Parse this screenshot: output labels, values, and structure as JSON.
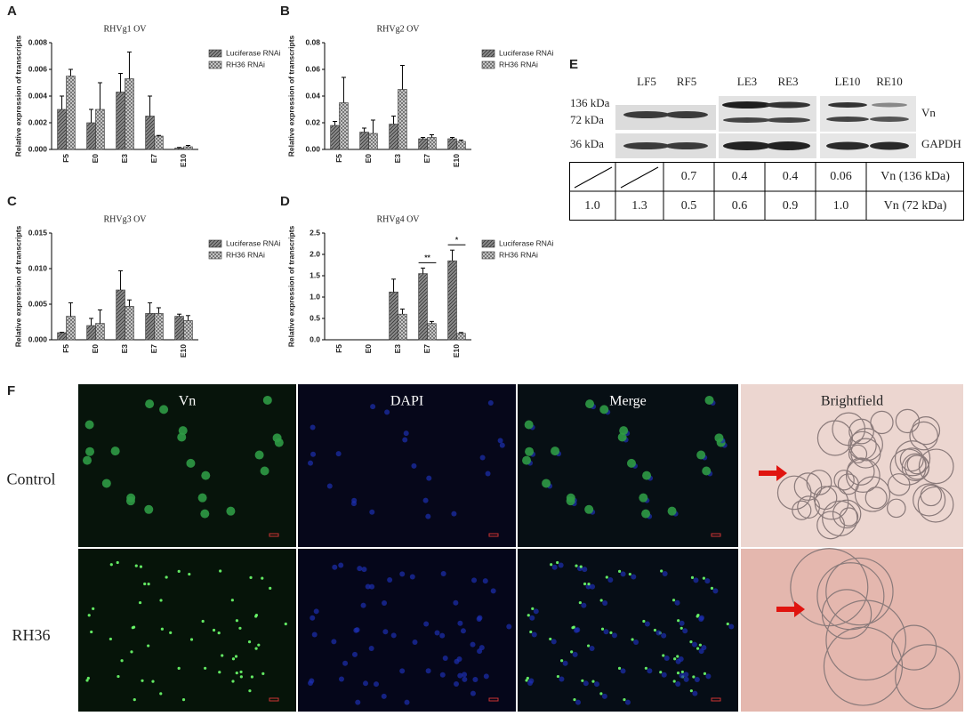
{
  "chart_data": [
    {
      "type": "bar",
      "panel_label": "A",
      "title": "RHVg1 OV",
      "ylabel": "Relative expression of transcripts",
      "categories": [
        "F5",
        "E0",
        "E3",
        "E7",
        "E10"
      ],
      "series": [
        {
          "name": "Luciferase RNAi",
          "color": "#8c8c8c",
          "values": [
            0.003,
            0.002,
            0.0043,
            0.0025,
            0.0001
          ],
          "errors": [
            0.001,
            0.001,
            0.0014,
            0.0015,
            5e-05
          ]
        },
        {
          "name": "RH36 RNAi",
          "color": "#d0d0d0",
          "values": [
            0.0055,
            0.003,
            0.0053,
            0.001,
            0.0002
          ],
          "errors": [
            0.0005,
            0.002,
            0.002,
            5e-05,
            0.0001
          ]
        }
      ],
      "ylim": [
        0,
        0.008
      ],
      "yticks": [
        {
          "value": 0,
          "label": "0.000"
        },
        {
          "value": 0.002,
          "label": "0.002"
        },
        {
          "value": 0.004,
          "label": "0.004"
        },
        {
          "value": 0.006,
          "label": "0.006"
        },
        {
          "value": 0.008,
          "label": "0.008"
        }
      ]
    },
    {
      "type": "bar",
      "panel_label": "B",
      "title": "RHVg2 OV",
      "ylabel": "Relative expression of transcripts",
      "categories": [
        "F5",
        "E0",
        "E3",
        "E7",
        "E10"
      ],
      "series": [
        {
          "name": "Luciferase RNAi",
          "color": "#8c8c8c",
          "values": [
            0.018,
            0.013,
            0.019,
            0.008,
            0.008
          ],
          "errors": [
            0.003,
            0.003,
            0.006,
            0.001,
            0.001
          ]
        },
        {
          "name": "RH36 RNAi",
          "color": "#d0d0d0",
          "values": [
            0.035,
            0.012,
            0.045,
            0.009,
            0.006
          ],
          "errors": [
            0.019,
            0.01,
            0.018,
            0.002,
            0.001
          ]
        }
      ],
      "ylim": [
        0,
        0.08
      ],
      "yticks": [
        {
          "value": 0,
          "label": "0.00"
        },
        {
          "value": 0.02,
          "label": "0.02"
        },
        {
          "value": 0.04,
          "label": "0.04"
        },
        {
          "value": 0.06,
          "label": "0.06"
        },
        {
          "value": 0.08,
          "label": "0.08"
        }
      ]
    },
    {
      "type": "bar",
      "panel_label": "C",
      "title": "RHVg3 OV",
      "ylabel": "Relative expression of transcripts",
      "categories": [
        "F5",
        "E0",
        "E3",
        "E7",
        "E10"
      ],
      "series": [
        {
          "name": "Luciferase RNAi",
          "color": "#8c8c8c",
          "values": [
            0.001,
            0.002,
            0.007,
            0.0037,
            0.0033
          ],
          "errors": [
            5e-05,
            0.001,
            0.0027,
            0.0015,
            0.0003
          ]
        },
        {
          "name": "RH36 RNAi",
          "color": "#d0d0d0",
          "values": [
            0.0033,
            0.0023,
            0.0047,
            0.0037,
            0.0027
          ],
          "errors": [
            0.0019,
            0.0019,
            0.0009,
            0.0008,
            0.0007
          ]
        }
      ],
      "ylim": [
        0,
        0.015
      ],
      "yticks": [
        {
          "value": 0,
          "label": "0.000"
        },
        {
          "value": 0.005,
          "label": "0.005"
        },
        {
          "value": 0.01,
          "label": "0.010"
        },
        {
          "value": 0.015,
          "label": "0.015"
        }
      ]
    },
    {
      "type": "bar",
      "panel_label": "D",
      "title": "RHVg4 OV",
      "ylabel": "Relative expression of transcripts",
      "categories": [
        "F5",
        "E0",
        "E3",
        "E7",
        "E10"
      ],
      "series": [
        {
          "name": "Luciferase RNAi",
          "color": "#8c8c8c",
          "values": [
            0,
            0,
            1.12,
            1.55,
            1.85
          ],
          "errors": [
            0,
            0,
            0.3,
            0.13,
            0.25
          ]
        },
        {
          "name": "RH36 RNAi",
          "color": "#d0d0d0",
          "values": [
            0,
            0,
            0.6,
            0.38,
            0.15
          ],
          "errors": [
            0,
            0,
            0.12,
            0.05,
            0.02
          ]
        }
      ],
      "ylim": [
        0,
        2.5
      ],
      "yticks": [
        {
          "value": 0,
          "label": "0.0"
        },
        {
          "value": 0.5,
          "label": "0.5"
        },
        {
          "value": 1,
          "label": "1.0"
        },
        {
          "value": 1.5,
          "label": "1.5"
        },
        {
          "value": 2,
          "label": "2.0"
        },
        {
          "value": 2.5,
          "label": "2.5"
        }
      ],
      "annotations": [
        "**",
        "*"
      ]
    }
  ],
  "panel_e": {
    "panel_label": "E",
    "lanes": [
      "LF5",
      "RF5",
      "LE3",
      "RE3",
      "LE10",
      "RE10"
    ],
    "markers": [
      "136 kDa",
      "72 kDa",
      "36 kDa"
    ],
    "bands": [
      "Vn",
      "GAPDH"
    ],
    "table": {
      "rows": [
        [
          "0.7",
          "0.4",
          "0.4",
          "0.06",
          "Vn (136 kDa)"
        ],
        [
          "1.0",
          "1.3",
          "0.5",
          "0.6",
          "0.9",
          "1.0",
          "Vn (72 kDa)"
        ]
      ]
    }
  },
  "panel_f": {
    "panel_label": "F",
    "columns": [
      "Vn",
      "DAPI",
      "Merge",
      "Brightfield"
    ],
    "rows": [
      "Control",
      "RH36"
    ]
  }
}
